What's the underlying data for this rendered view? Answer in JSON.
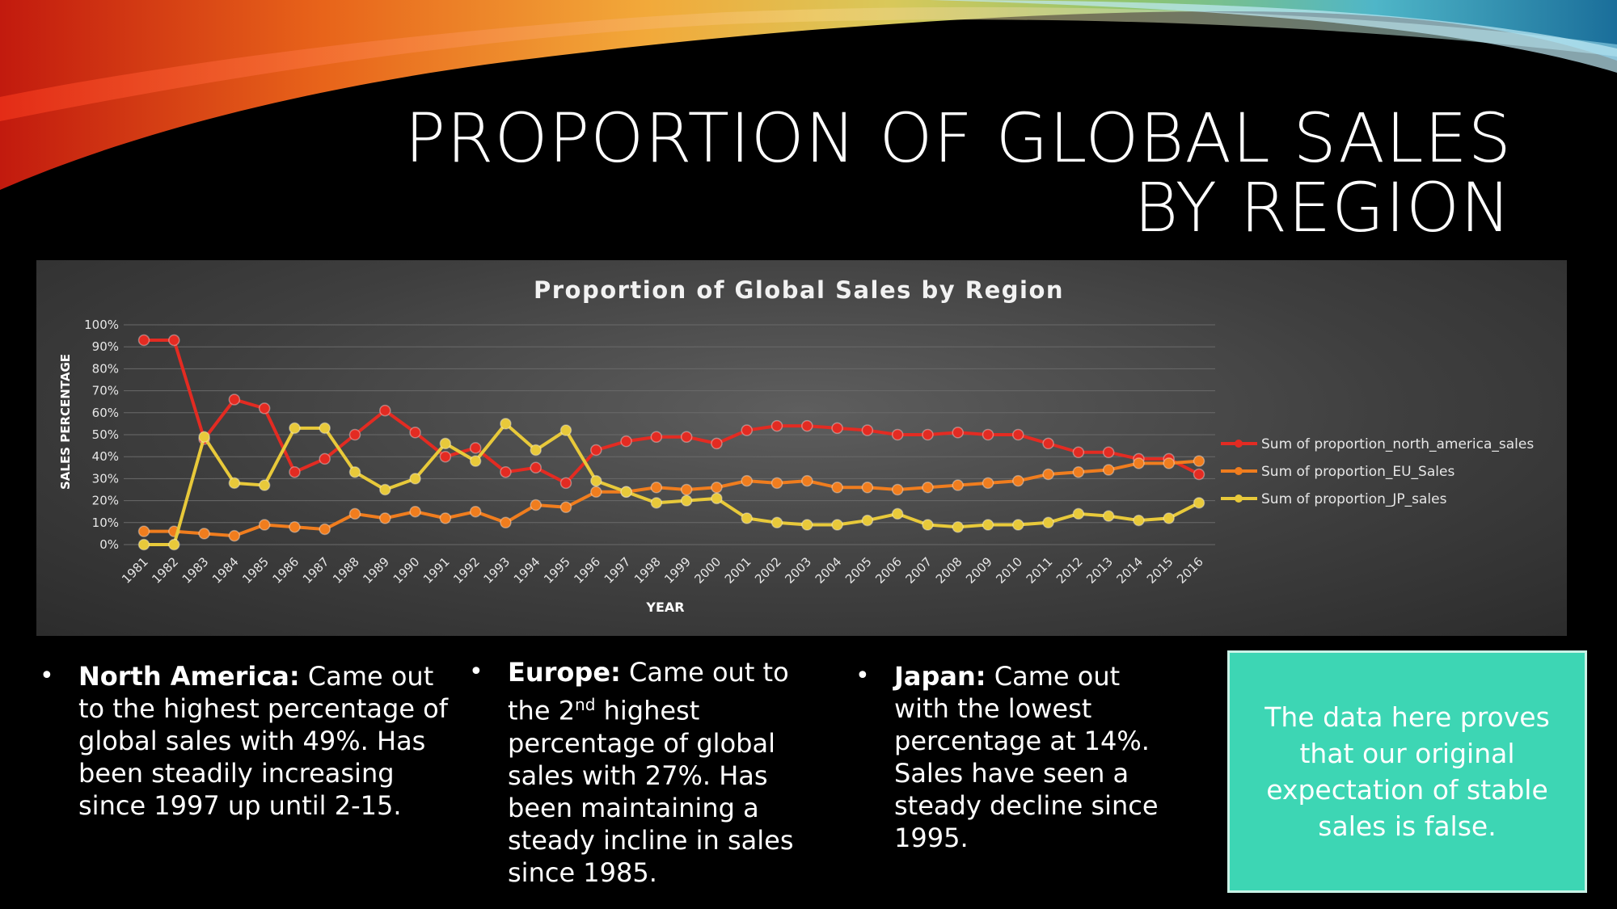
{
  "slide": {
    "title_line1": "PROPORTION OF GLOBAL SALES",
    "title_line2": "BY REGION"
  },
  "chart_data": {
    "type": "line",
    "title": "Proportion of Global Sales by Region",
    "xlabel": "YEAR",
    "ylabel": "SALES PERCENTAGE",
    "ylim": [
      0,
      100
    ],
    "yticks": [
      "0%",
      "10%",
      "20%",
      "30%",
      "40%",
      "50%",
      "60%",
      "70%",
      "80%",
      "90%",
      "100%"
    ],
    "grid": true,
    "legend": "right",
    "categories": [
      "1981",
      "1982",
      "1983",
      "1984",
      "1985",
      "1986",
      "1987",
      "1988",
      "1989",
      "1990",
      "1991",
      "1992",
      "1993",
      "1994",
      "1995",
      "1996",
      "1997",
      "1998",
      "1999",
      "2000",
      "2001",
      "2002",
      "2003",
      "2004",
      "2005",
      "2006",
      "2007",
      "2008",
      "2009",
      "2010",
      "2011",
      "2012",
      "2013",
      "2014",
      "2015",
      "2016"
    ],
    "series": [
      {
        "name": "Sum of proportion_north_america_sales",
        "color": "#e32b22",
        "values": [
          93,
          93,
          48,
          66,
          62,
          33,
          39,
          50,
          61,
          51,
          40,
          44,
          33,
          35,
          28,
          43,
          47,
          49,
          49,
          46,
          52,
          54,
          54,
          53,
          52,
          50,
          50,
          51,
          50,
          50,
          46,
          42,
          42,
          39,
          39,
          32
        ]
      },
      {
        "name": "Sum of proportion_EU_Sales",
        "color": "#f07d1e",
        "values": [
          6,
          6,
          5,
          4,
          9,
          8,
          7,
          14,
          12,
          15,
          12,
          15,
          10,
          18,
          17,
          24,
          24,
          26,
          25,
          26,
          29,
          28,
          29,
          26,
          26,
          25,
          26,
          27,
          28,
          29,
          32,
          33,
          34,
          37,
          37,
          38
        ]
      },
      {
        "name": "Sum of proportion_JP_sales",
        "color": "#e8c93a",
        "values": [
          0,
          0,
          49,
          28,
          27,
          53,
          53,
          33,
          25,
          30,
          46,
          38,
          55,
          43,
          52,
          29,
          24,
          19,
          20,
          21,
          12,
          10,
          9,
          9,
          11,
          14,
          9,
          8,
          9,
          9,
          10,
          14,
          13,
          11,
          12,
          19
        ]
      }
    ]
  },
  "bullets": [
    {
      "heading": "North America:",
      "text": " Came out to the highest percentage of global sales with 49%. Has been steadily increasing since 1997 up until 2-15."
    },
    {
      "heading": "Europe:",
      "text_a": " Came out to the 2",
      "sup": "nd",
      "text_b": " highest percentage of global sales with 27%. Has been maintaining a steady incline in sales since 1985."
    },
    {
      "heading": "Japan:",
      "text": " Came out with the lowest percentage at 14%. Sales have seen a steady decline since 1995."
    }
  ],
  "bullet_char": "•",
  "callout": {
    "text": "The data here proves that our original expectation of stable sales is false."
  }
}
